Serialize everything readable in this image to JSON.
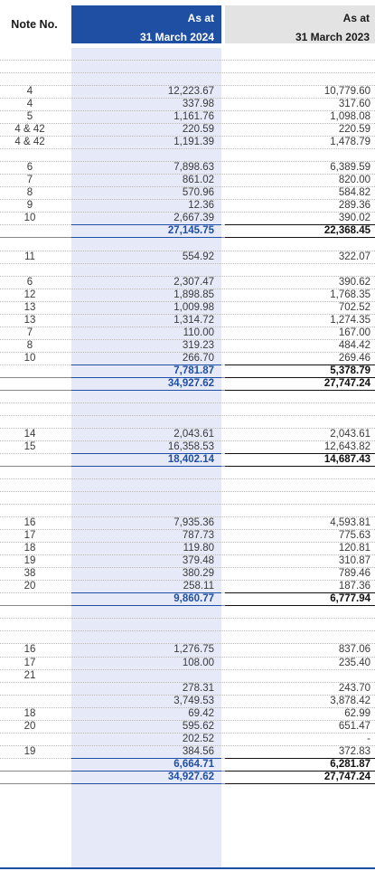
{
  "header": {
    "note_label": "Note No.",
    "current": {
      "line1": "As at",
      "line2": "31 March 2024"
    },
    "previous": {
      "line1": "As at",
      "line2": "31 March 2023"
    }
  },
  "colors": {
    "accent": "#1e4fa3",
    "shade": "#e6e9f7",
    "prev_header": "#e3e3e3"
  },
  "rows": [
    {
      "note": "",
      "cur": "",
      "prev": ""
    },
    {
      "note": "",
      "cur": "",
      "prev": ""
    },
    {
      "note": "",
      "cur": "",
      "prev": ""
    },
    {
      "note": "4",
      "cur": "12,223.67",
      "prev": "10,779.60"
    },
    {
      "note": "4",
      "cur": "337.98",
      "prev": "317.60"
    },
    {
      "note": "5",
      "cur": "1,161.76",
      "prev": "1,098.08"
    },
    {
      "note": "4 & 42",
      "cur": "220.59",
      "prev": "220.59"
    },
    {
      "note": "4 & 42",
      "cur": "1,191.39",
      "prev": "1,478.79"
    },
    {
      "note": "",
      "cur": "",
      "prev": ""
    },
    {
      "note": "6",
      "cur": "7,898.63",
      "prev": "6,389.59"
    },
    {
      "note": "7",
      "cur": "861.02",
      "prev": "820.00"
    },
    {
      "note": "8",
      "cur": "570.96",
      "prev": "584.82"
    },
    {
      "note": "9",
      "cur": "12.36",
      "prev": "289.36"
    },
    {
      "note": "10",
      "cur": "2,667.39",
      "prev": "390.02"
    },
    {
      "note": "",
      "cur": "27,145.75",
      "prev": "22,368.45",
      "total": true
    },
    {
      "note": "",
      "cur": "",
      "prev": ""
    },
    {
      "note": "11",
      "cur": "554.92",
      "prev": "322.07"
    },
    {
      "note": "",
      "cur": "",
      "prev": ""
    },
    {
      "note": "6",
      "cur": "2,307.47",
      "prev": "390.62"
    },
    {
      "note": "12",
      "cur": "1,898.85",
      "prev": "1,768.35"
    },
    {
      "note": "13",
      "cur": "1,009.98",
      "prev": "702.52"
    },
    {
      "note": "13",
      "cur": "1,314.72",
      "prev": "1,274.35"
    },
    {
      "note": "7",
      "cur": "110.00",
      "prev": "167.00"
    },
    {
      "note": "8",
      "cur": "319.23",
      "prev": "484.42"
    },
    {
      "note": "10",
      "cur": "266.70",
      "prev": "269.46"
    },
    {
      "note": "",
      "cur": "7,781.87",
      "prev": "5,378.79",
      "total": true
    },
    {
      "note": "",
      "cur": "34,927.62",
      "prev": "27,747.24",
      "total": true
    },
    {
      "note": "",
      "cur": "",
      "prev": ""
    },
    {
      "note": "",
      "cur": "",
      "prev": ""
    },
    {
      "note": "",
      "cur": "",
      "prev": ""
    },
    {
      "note": "14",
      "cur": "2,043.61",
      "prev": "2,043.61"
    },
    {
      "note": "15",
      "cur": "16,358.53",
      "prev": "12,643.82"
    },
    {
      "note": "",
      "cur": "18,402.14",
      "prev": "14,687.43",
      "total": true
    },
    {
      "note": "",
      "cur": "",
      "prev": ""
    },
    {
      "note": "",
      "cur": "",
      "prev": ""
    },
    {
      "note": "",
      "cur": "",
      "prev": ""
    },
    {
      "note": "",
      "cur": "",
      "prev": ""
    },
    {
      "note": "16",
      "cur": "7,935.36",
      "prev": "4,593.81"
    },
    {
      "note": "17",
      "cur": "787.73",
      "prev": "775.63"
    },
    {
      "note": "18",
      "cur": "119.80",
      "prev": "120.81"
    },
    {
      "note": "19",
      "cur": "379.48",
      "prev": "310.87"
    },
    {
      "note": "38",
      "cur": "380.29",
      "prev": "789.46"
    },
    {
      "note": "20",
      "cur": "258.11",
      "prev": "187.36"
    },
    {
      "note": "",
      "cur": "9,860.77",
      "prev": "6,777.94",
      "total": true
    },
    {
      "note": "",
      "cur": "",
      "prev": ""
    },
    {
      "note": "",
      "cur": "",
      "prev": ""
    },
    {
      "note": "",
      "cur": "",
      "prev": ""
    },
    {
      "note": "16",
      "cur": "1,276.75",
      "prev": "837.06"
    },
    {
      "note": "17",
      "cur": "108.00",
      "prev": "235.40"
    },
    {
      "note": "21",
      "cur": "",
      "prev": ""
    },
    {
      "note": "",
      "cur": "278.31",
      "prev": "243.70"
    },
    {
      "note": "",
      "cur": "3,749.53",
      "prev": "3,878.42"
    },
    {
      "note": "18",
      "cur": "69.42",
      "prev": "62.99"
    },
    {
      "note": "20",
      "cur": "595.62",
      "prev": "651.47"
    },
    {
      "note": "",
      "cur": "202.52",
      "prev": "-"
    },
    {
      "note": "19",
      "cur": "384.56",
      "prev": "372.83"
    },
    {
      "note": "",
      "cur": "6,664.71",
      "prev": "6,281.87",
      "total": true
    },
    {
      "note": "",
      "cur": "34,927.62",
      "prev": "27,747.24",
      "total": true
    }
  ]
}
